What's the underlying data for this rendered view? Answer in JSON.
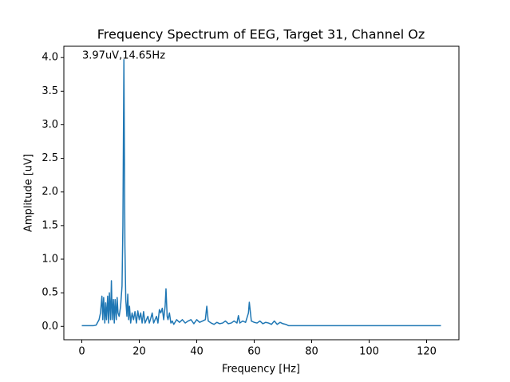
{
  "chart_data": {
    "type": "line",
    "title": "Frequency Spectrum of EEG, Target 31, Channel Oz",
    "x_label": "Frequency [Hz]",
    "y_label": "Amplitude [uV]",
    "annotation": "3.97uV,14.65Hz",
    "color": "#1f77b4",
    "x": [
      0,
      2,
      4,
      5,
      6,
      6.5,
      7,
      7.3,
      7.6,
      8,
      8.3,
      8.6,
      9,
      9.3,
      9.6,
      10,
      10.3,
      10.6,
      11,
      11.3,
      11.6,
      12,
      12.3,
      12.6,
      13,
      13.5,
      14,
      14.3,
      14.65,
      15,
      15.3,
      15.7,
      16,
      16.3,
      16.6,
      17,
      17.5,
      18,
      18.5,
      19,
      19.5,
      20,
      20.5,
      21,
      21.5,
      22,
      22.5,
      23,
      23.5,
      24,
      24.5,
      25,
      25.5,
      26,
      26.5,
      27,
      27.5,
      28,
      28.5,
      29,
      29.3,
      29.7,
      30,
      30.5,
      31,
      31.5,
      32,
      33,
      34,
      35,
      36,
      37,
      38,
      39,
      40,
      41,
      42,
      43,
      43.5,
      44,
      45,
      46,
      47,
      48,
      49,
      50,
      51,
      52,
      53,
      54,
      54.5,
      55,
      56,
      57,
      58,
      58.3,
      59,
      60,
      61,
      62,
      63,
      64,
      65,
      66,
      67,
      68,
      69,
      70,
      71,
      72,
      75,
      80,
      100,
      125
    ],
    "values": [
      0.01,
      0.01,
      0.01,
      0.02,
      0.1,
      0.2,
      0.45,
      0.1,
      0.43,
      0.05,
      0.35,
      0.1,
      0.45,
      0.05,
      0.5,
      0.1,
      0.68,
      0.1,
      0.4,
      0.05,
      0.4,
      0.1,
      0.43,
      0.2,
      0.15,
      0.3,
      0.6,
      1.5,
      3.97,
      1.2,
      0.4,
      0.15,
      0.48,
      0.1,
      0.3,
      0.05,
      0.2,
      0.1,
      0.22,
      0.05,
      0.23,
      0.1,
      0.2,
      0.05,
      0.22,
      0.05,
      0.1,
      0.15,
      0.05,
      0.12,
      0.2,
      0.05,
      0.1,
      0.15,
      0.05,
      0.25,
      0.2,
      0.27,
      0.1,
      0.3,
      0.56,
      0.15,
      0.1,
      0.2,
      0.05,
      0.08,
      0.03,
      0.1,
      0.06,
      0.1,
      0.05,
      0.08,
      0.1,
      0.04,
      0.1,
      0.06,
      0.08,
      0.1,
      0.3,
      0.08,
      0.05,
      0.03,
      0.06,
      0.04,
      0.05,
      0.08,
      0.04,
      0.05,
      0.08,
      0.05,
      0.16,
      0.05,
      0.08,
      0.06,
      0.2,
      0.36,
      0.08,
      0.06,
      0.05,
      0.08,
      0.04,
      0.06,
      0.05,
      0.03,
      0.08,
      0.03,
      0.06,
      0.04,
      0.03,
      0.01,
      0.01,
      0.01,
      0.01,
      0.01
    ],
    "xlim": [
      -6.25,
      131.25
    ],
    "ylim": [
      -0.1985,
      4.1685
    ],
    "xticks": [
      0,
      20,
      40,
      60,
      80,
      100,
      120
    ],
    "yticks": [
      {
        "value": 0,
        "label": "0.0"
      },
      {
        "value": 0.5,
        "label": "0.5"
      },
      {
        "value": 1,
        "label": "1.0"
      },
      {
        "value": 1.5,
        "label": "1.5"
      },
      {
        "value": 2,
        "label": "2.0"
      },
      {
        "value": 2.5,
        "label": "2.5"
      },
      {
        "value": 3,
        "label": "3.0"
      },
      {
        "value": 3.5,
        "label": "3.5"
      },
      {
        "value": 4,
        "label": "4.0"
      }
    ]
  }
}
